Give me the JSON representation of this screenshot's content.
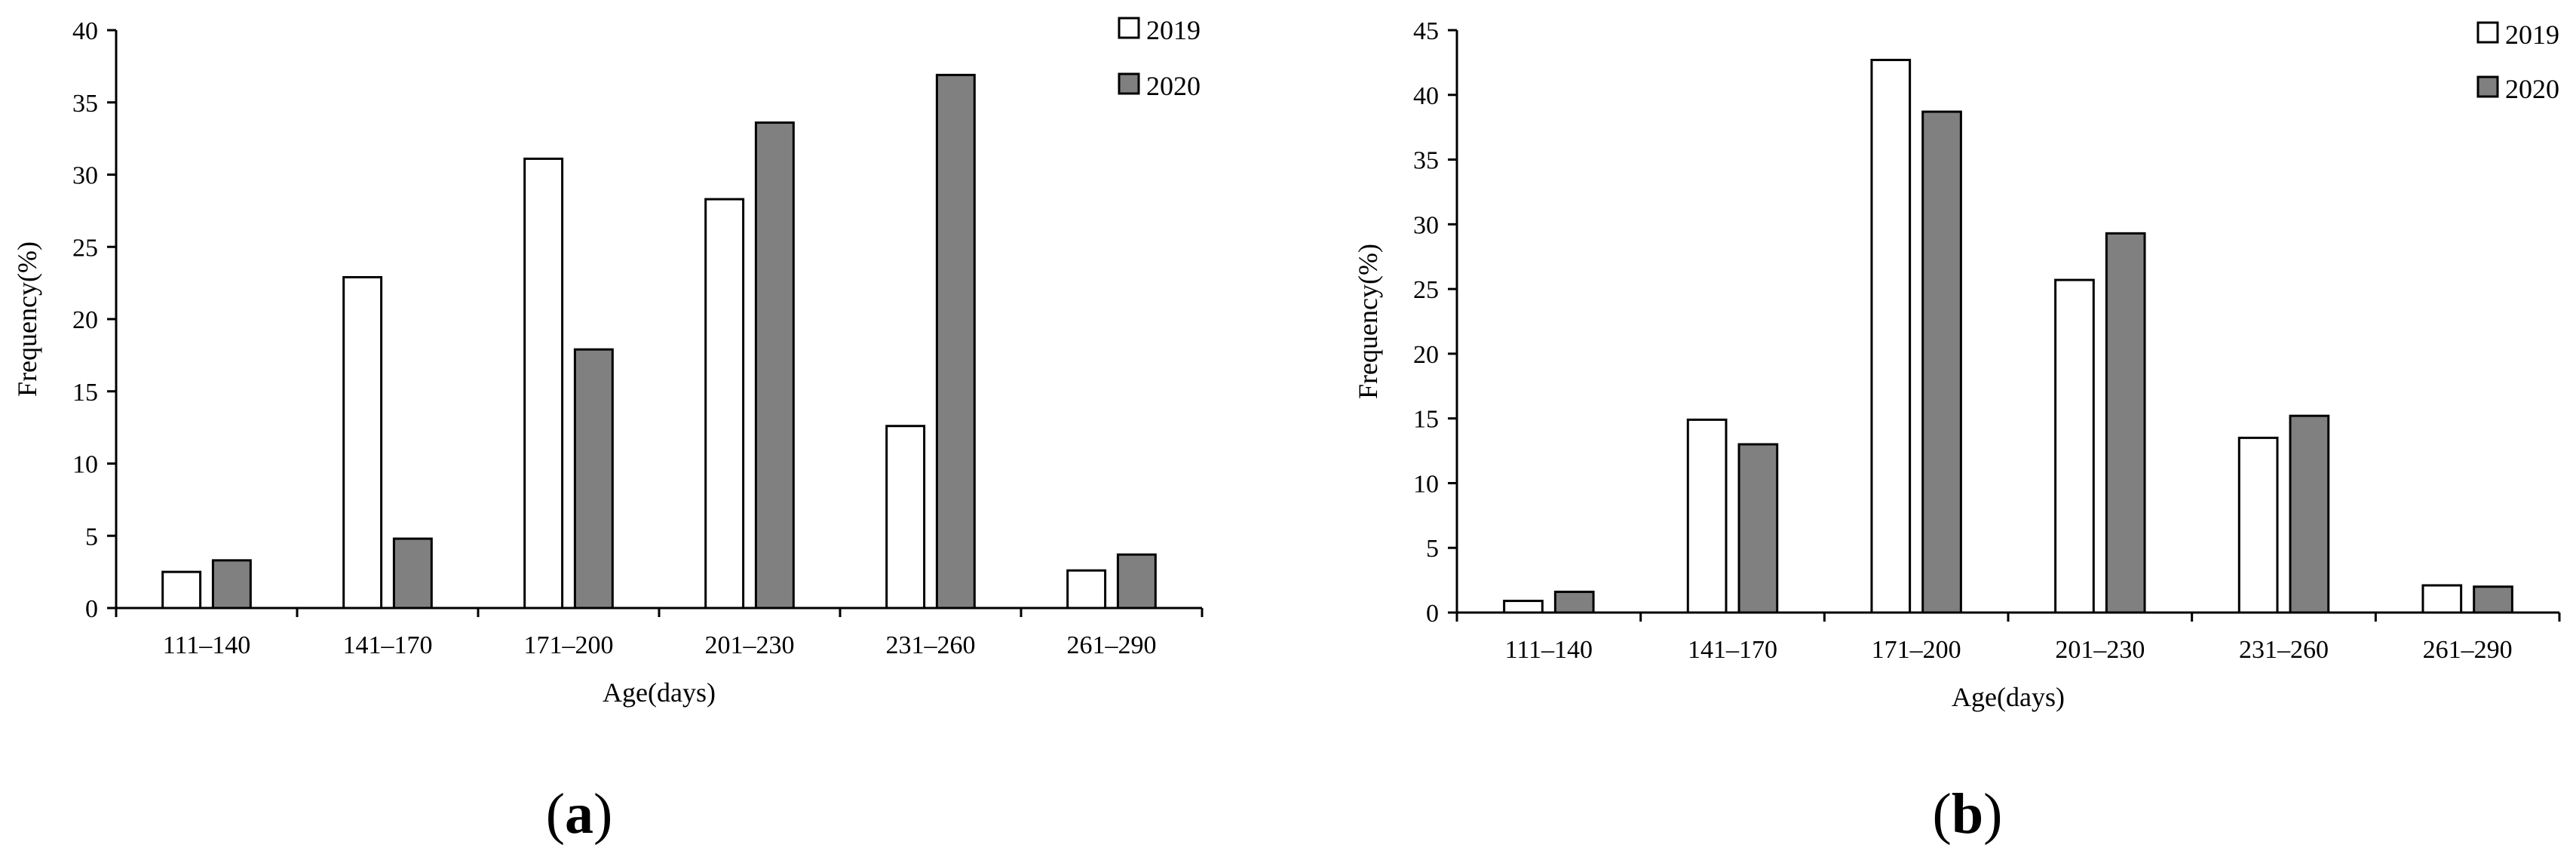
{
  "chart_data": [
    {
      "type": "bar",
      "panel_label": "a",
      "categories": [
        "111–140",
        "141–170",
        "171–200",
        "201–230",
        "231–260",
        "261–290"
      ],
      "series": [
        {
          "name": "2019",
          "color": "#ffffff",
          "values": [
            2.5,
            22.9,
            31.1,
            28.3,
            12.6,
            2.6
          ]
        },
        {
          "name": "2020",
          "color": "#808080",
          "values": [
            3.3,
            4.8,
            17.9,
            33.6,
            36.9,
            3.7
          ]
        }
      ],
      "xlabel": "Age(days)",
      "ylabel": "Frequency(%)",
      "ylim": [
        0,
        40
      ],
      "yticks": [
        0,
        5,
        10,
        15,
        20,
        25,
        30,
        35,
        40
      ],
      "grid": false,
      "legend_position": "top-right"
    },
    {
      "type": "bar",
      "panel_label": "b",
      "categories": [
        "111–140",
        "141–170",
        "171–200",
        "201–230",
        "231–260",
        "261–290"
      ],
      "series": [
        {
          "name": "2019",
          "color": "#ffffff",
          "values": [
            0.9,
            14.9,
            42.7,
            25.7,
            13.5,
            2.1
          ]
        },
        {
          "name": "2020",
          "color": "#808080",
          "values": [
            1.6,
            13.0,
            38.7,
            29.3,
            15.2,
            2.0
          ]
        }
      ],
      "xlabel": "Age(days)",
      "ylabel": "Frequency(%)",
      "ylim": [
        0,
        45
      ],
      "yticks": [
        0,
        5,
        10,
        15,
        20,
        25,
        30,
        35,
        40,
        45
      ],
      "grid": false,
      "legend_position": "top-right"
    }
  ]
}
